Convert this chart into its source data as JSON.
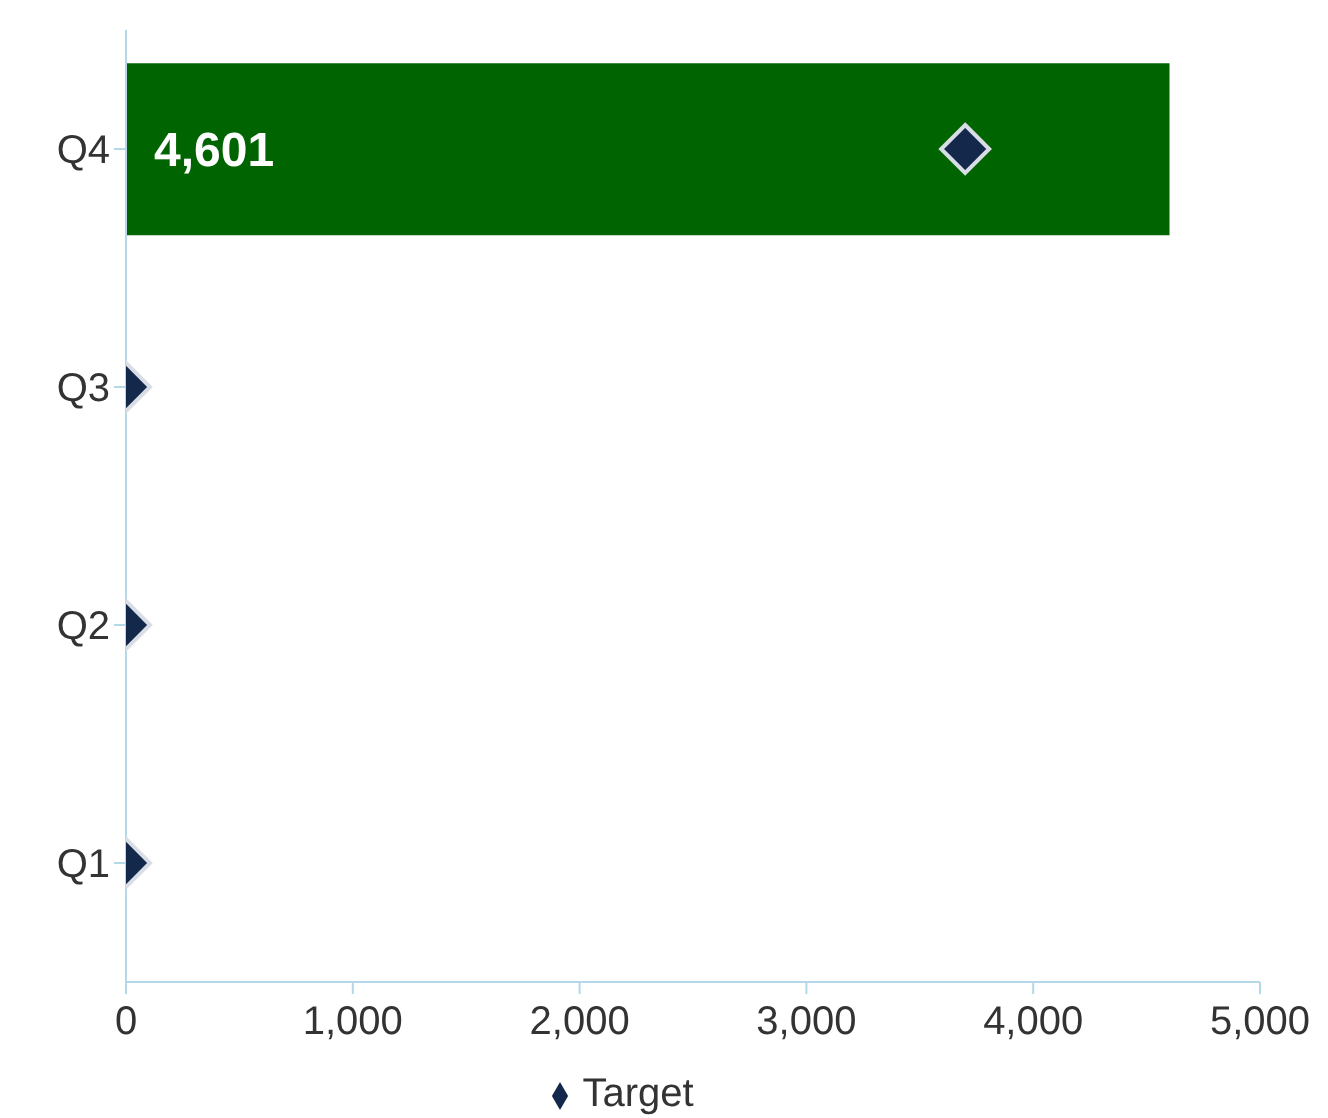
{
  "chart_data": {
    "type": "bar",
    "orientation": "horizontal",
    "legend": "bottom",
    "categories": [
      "Q4",
      "Q3",
      "Q2",
      "Q1"
    ],
    "series": [
      {
        "color": "#006400",
        "values": [
          4601,
          null,
          null,
          null
        ],
        "value_labels": [
          "4,601",
          null,
          null,
          null
        ]
      },
      {
        "type": "scatter",
        "name": "Target",
        "color": "#14284b",
        "marker": "diamond",
        "values": [
          3700,
          0,
          0,
          0
        ]
      }
    ],
    "xlim": [
      0,
      5000
    ],
    "xticks": [
      0,
      {
        "value": 1000,
        "label": "1,000"
      },
      {
        "value": 2000,
        "label": "2,000"
      },
      {
        "value": 3000,
        "label": "3,000"
      },
      {
        "value": 4000,
        "label": "4,000"
      },
      {
        "value": 5000,
        "label": "5,000"
      }
    ]
  }
}
